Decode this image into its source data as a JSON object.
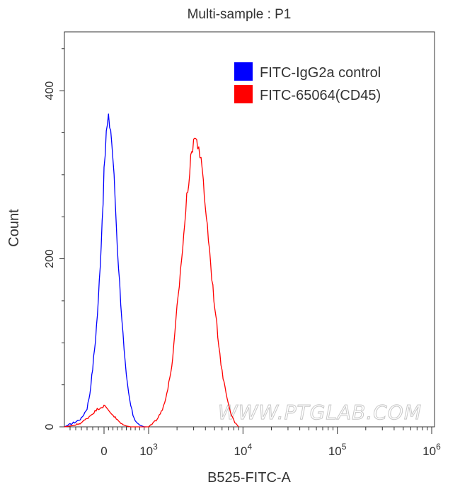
{
  "chart_data": {
    "type": "histogram",
    "title": "Multi-sample : P1",
    "xlabel": "B525-FITC-A",
    "ylabel": "Count",
    "x_scale": "biexponential",
    "xlim_display": [
      -700,
      1000000
    ],
    "ylim": [
      0,
      470
    ],
    "x_ticks": [
      {
        "value": 0,
        "base": "0",
        "exp": ""
      },
      {
        "value": 1000,
        "base": "10",
        "exp": "3"
      },
      {
        "value": 10000,
        "base": "10",
        "exp": "4"
      },
      {
        "value": 100000,
        "base": "10",
        "exp": "5"
      },
      {
        "value": 1000000,
        "base": "10",
        "exp": "6"
      }
    ],
    "y_ticks": [
      {
        "value": 0,
        "label": "0"
      },
      {
        "value": 200,
        "label": "200"
      },
      {
        "value": 400,
        "label": "400"
      }
    ],
    "legend_position": "top-right",
    "watermark": "WWW.PTGLAB.COM",
    "series": [
      {
        "name": "FITC-IgG2a control",
        "color": "#0000ff",
        "x": [
          -700,
          -600,
          -500,
          -400,
          -300,
          -250,
          -200,
          -150,
          -100,
          -50,
          0,
          50,
          100,
          150,
          200,
          250,
          300,
          350,
          400,
          450,
          500,
          550,
          600,
          650,
          700,
          750,
          800,
          850,
          900,
          950
        ],
        "y": [
          0,
          3,
          6,
          10,
          22,
          40,
          70,
          105,
          150,
          220,
          300,
          350,
          365,
          355,
          320,
          270,
          215,
          170,
          130,
          90,
          60,
          40,
          25,
          14,
          8,
          4,
          2,
          1,
          0,
          0
        ]
      },
      {
        "name": "FITC-65064(CD45)",
        "color": "#ff0000",
        "x": [
          -700,
          -500,
          -400,
          -300,
          -200,
          -100,
          0,
          100,
          200,
          300,
          400,
          500,
          600,
          700,
          800,
          900,
          1000,
          1200,
          1400,
          1600,
          1800,
          2000,
          2300,
          2600,
          3000,
          3400,
          3800,
          4300,
          4800,
          5400,
          6000,
          6800,
          7500,
          8200,
          9000
        ],
        "y": [
          0,
          2,
          5,
          10,
          16,
          22,
          25,
          20,
          14,
          8,
          3,
          1,
          0,
          0,
          0,
          0,
          0,
          8,
          20,
          45,
          80,
          140,
          215,
          285,
          345,
          335,
          290,
          225,
          165,
          110,
          65,
          35,
          15,
          5,
          0
        ]
      }
    ]
  }
}
